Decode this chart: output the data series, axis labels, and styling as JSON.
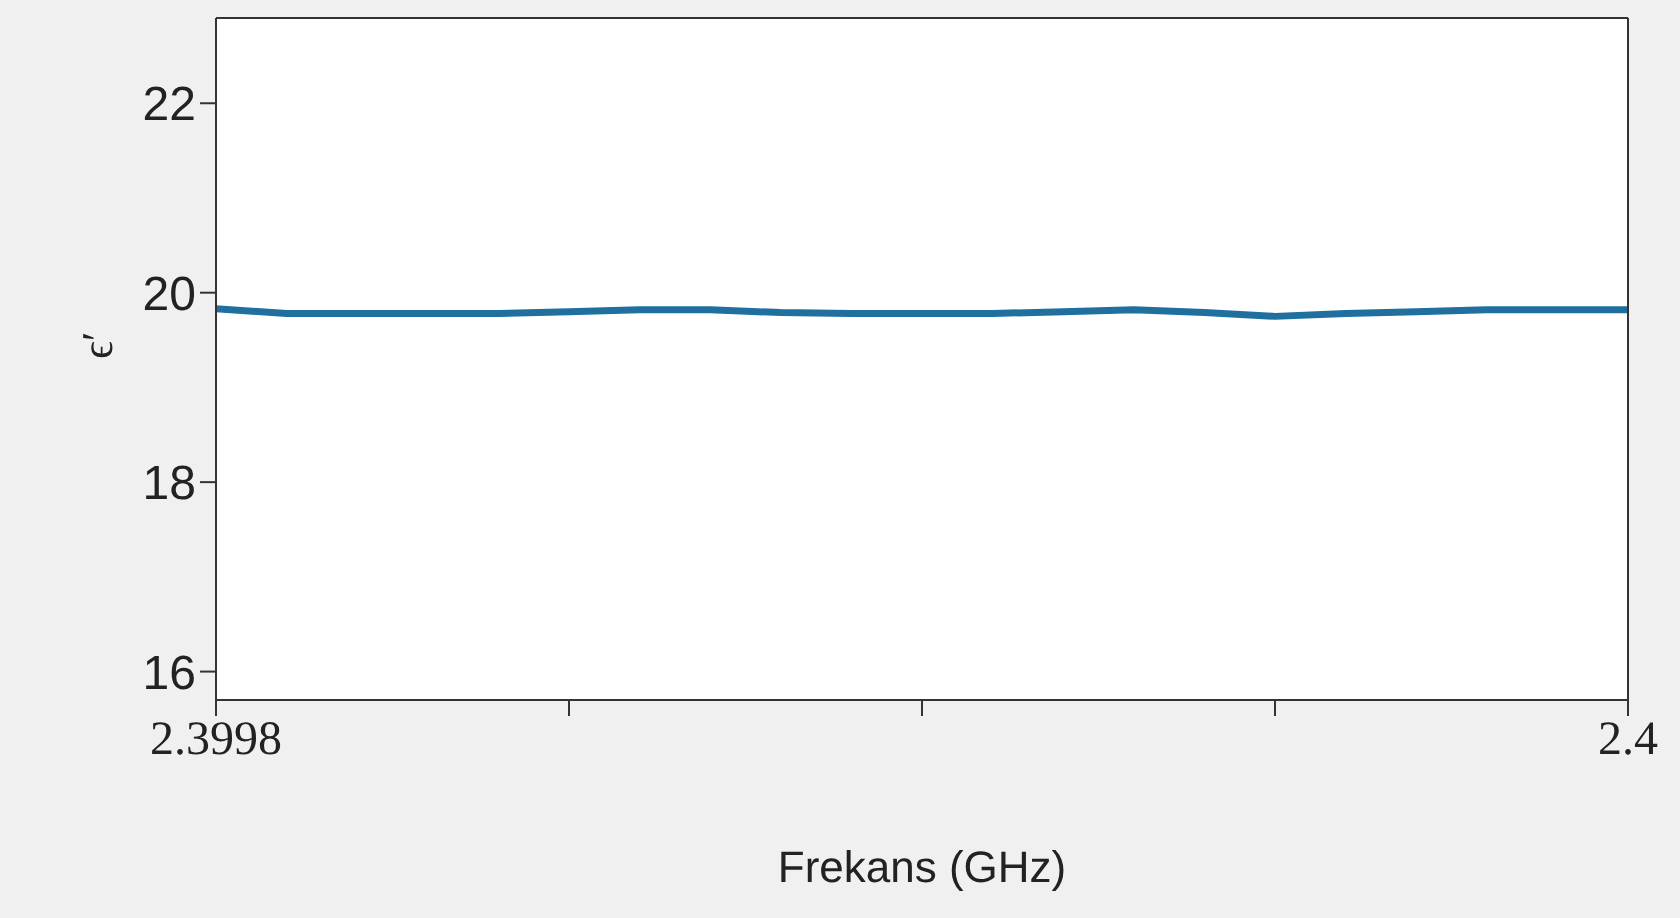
{
  "chart_data": {
    "type": "line",
    "xlabel": "Frekans (GHz)",
    "ylabel": "ϵ′",
    "x": [
      2.3998,
      2.39981,
      2.39982,
      2.39983,
      2.39984,
      2.39985,
      2.39986,
      2.39987,
      2.39988,
      2.39989,
      2.3999,
      2.39991,
      2.39992,
      2.39993,
      2.39994,
      2.39995,
      2.39996,
      2.39997,
      2.39998,
      2.39999,
      2.4
    ],
    "series": [
      {
        "color": "#1f6f9f",
        "values": [
          19.83,
          19.78,
          19.78,
          19.78,
          19.78,
          19.8,
          19.82,
          19.82,
          19.79,
          19.78,
          19.78,
          19.78,
          19.8,
          19.82,
          19.79,
          19.75,
          19.78,
          19.8,
          19.82,
          19.82,
          19.82
        ]
      }
    ],
    "xlim": [
      2.3998,
      2.4
    ],
    "xticks": [
      2.3998,
      {
        "value": 2.39985,
        "label": null
      },
      {
        "value": 2.3999,
        "label": null
      },
      {
        "value": 2.39995,
        "label": null
      },
      2.4
    ],
    "ylim": [
      15.7,
      22.9
    ],
    "yticks": [
      16,
      18,
      20,
      22
    ],
    "grid": false,
    "legend": false,
    "marker": "none",
    "line_style": "solid"
  }
}
